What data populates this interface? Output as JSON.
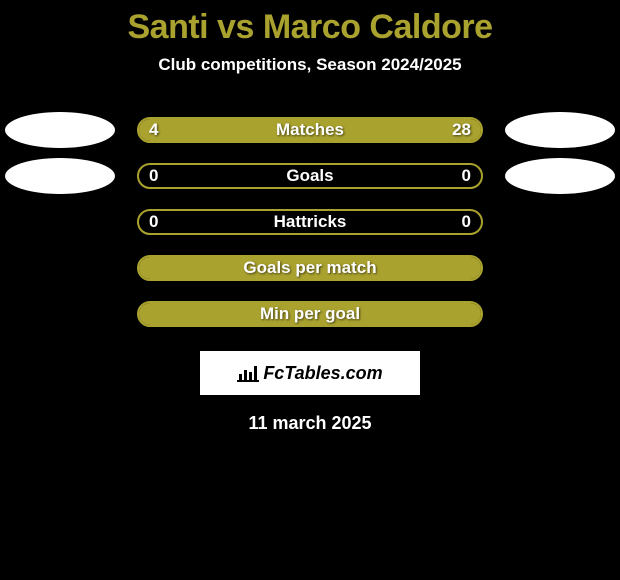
{
  "title": "Santi vs Marco Caldore",
  "subtitle": "Club competitions, Season 2024/2025",
  "accent_color": "#aaa22f",
  "background_color": "#000000",
  "text_color": "#ffffff",
  "stats": [
    {
      "label": "Matches",
      "left_value": "4",
      "right_value": "28",
      "left_pct": 18,
      "right_pct": 82,
      "show_left_avatar": true,
      "show_right_avatar": true
    },
    {
      "label": "Goals",
      "left_value": "0",
      "right_value": "0",
      "left_pct": 0,
      "right_pct": 0,
      "show_left_avatar": true,
      "show_right_avatar": true
    },
    {
      "label": "Hattricks",
      "left_value": "0",
      "right_value": "0",
      "left_pct": 0,
      "right_pct": 0,
      "show_left_avatar": false,
      "show_right_avatar": false
    },
    {
      "label": "Goals per match",
      "left_value": "",
      "right_value": "",
      "left_pct": 100,
      "right_pct": 0,
      "full_fill": true,
      "show_left_avatar": false,
      "show_right_avatar": false
    },
    {
      "label": "Min per goal",
      "left_value": "",
      "right_value": "",
      "left_pct": 100,
      "right_pct": 0,
      "full_fill": true,
      "show_left_avatar": false,
      "show_right_avatar": false
    }
  ],
  "logo_text": "FcTables.com",
  "date": "11 march 2025"
}
